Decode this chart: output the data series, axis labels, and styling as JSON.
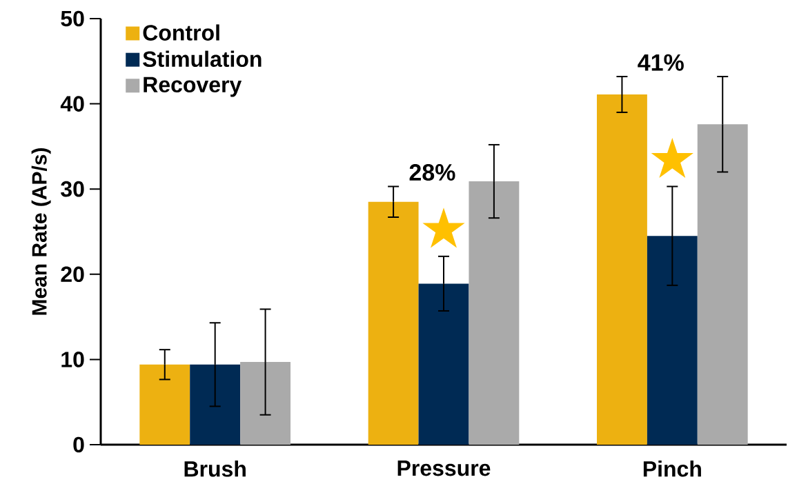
{
  "chart_data": {
    "type": "bar",
    "ylabel": "Mean Rate (AP/s)",
    "categories": [
      "Brush",
      "Pressure",
      "Pinch"
    ],
    "series": [
      {
        "name": "Control",
        "color": "#edb111",
        "values": [
          9.4,
          28.5,
          41.1
        ],
        "errors": [
          1.75,
          1.8,
          2.1
        ]
      },
      {
        "name": "Stimulation",
        "color": "#002a54",
        "values": [
          9.4,
          18.9,
          24.5
        ],
        "errors": [
          4.9,
          3.2,
          5.8
        ]
      },
      {
        "name": "Recovery",
        "color": "#aaaaaa",
        "values": [
          9.7,
          30.9,
          37.6
        ],
        "errors": [
          6.2,
          4.3,
          5.6
        ]
      }
    ],
    "annotations": [
      "28%",
      "★",
      "41%",
      "★"
    ],
    "ylim": [
      0,
      50
    ],
    "yticks": [
      0,
      10,
      20,
      30,
      40,
      50
    ],
    "grid": false,
    "legend": "top left"
  }
}
